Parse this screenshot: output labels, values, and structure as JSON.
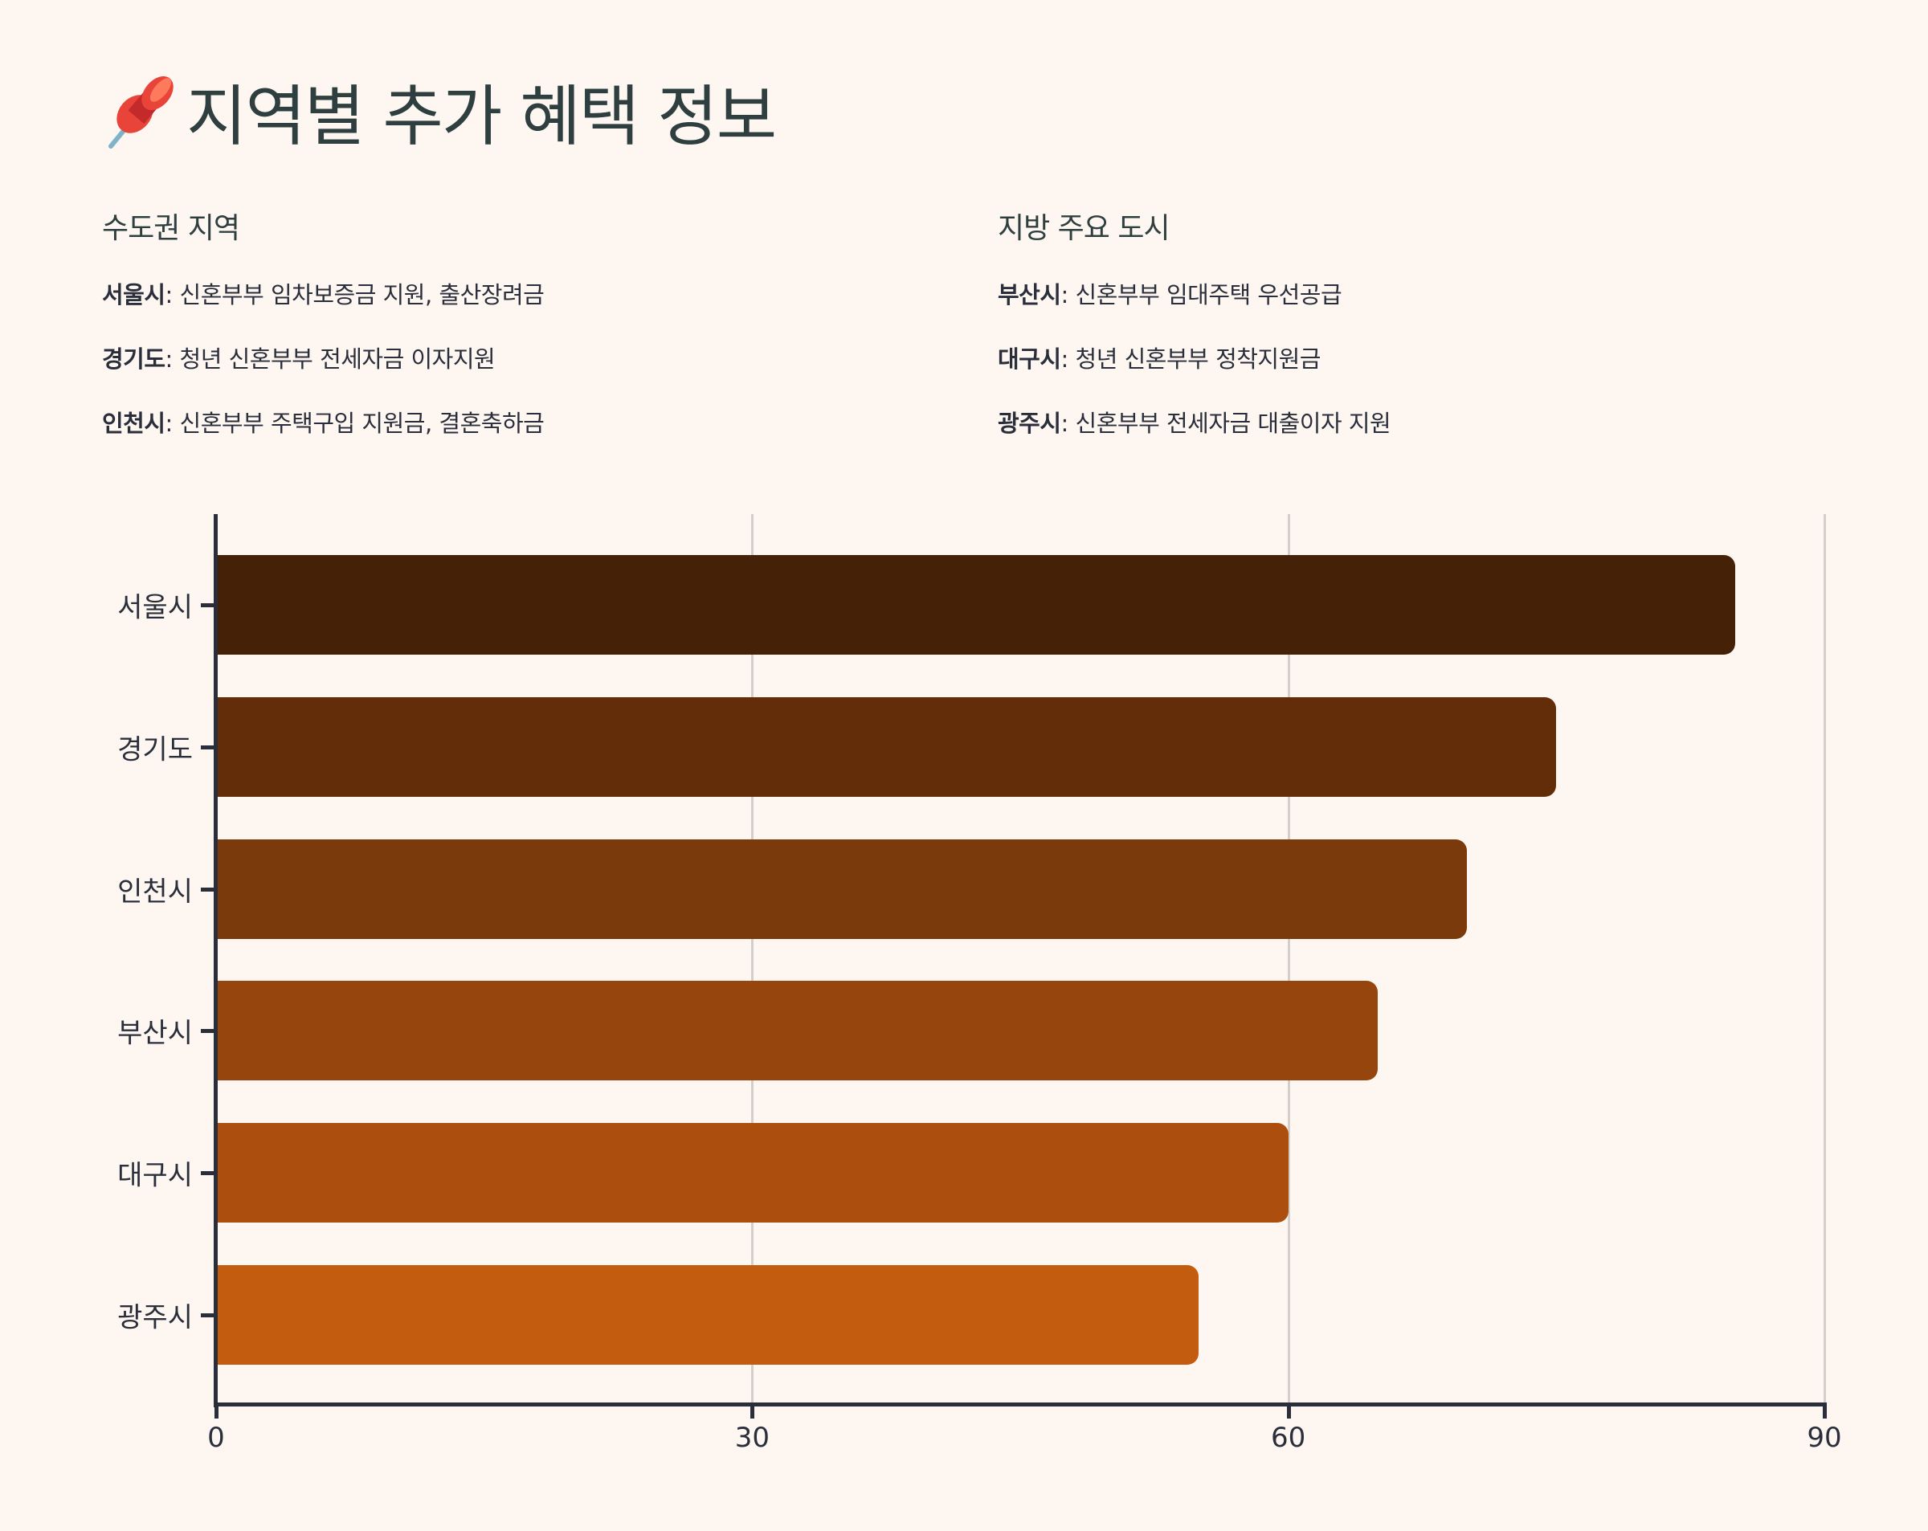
{
  "header": {
    "icon": "pushpin-icon",
    "title": "지역별 추가 혜택 정보"
  },
  "sections": [
    {
      "heading": "수도권 지역",
      "items": [
        {
          "region": "서울시",
          "sep": ": ",
          "benefit": "신혼부부 임차보증금 지원, 출산장려금"
        },
        {
          "region": "경기도",
          "sep": ": ",
          "benefit": "청년 신혼부부 전세자금 이자지원"
        },
        {
          "region": "인천시",
          "sep": ": ",
          "benefit": "신혼부부 주택구입 지원금, 결혼축하금"
        }
      ]
    },
    {
      "heading": "지방 주요 도시",
      "items": [
        {
          "region": "부산시",
          "sep": ": ",
          "benefit": "신혼부부 임대주택 우선공급"
        },
        {
          "region": "대구시",
          "sep": ": ",
          "benefit": "청년 신혼부부 정착지원금"
        },
        {
          "region": "광주시",
          "sep": ": ",
          "benefit": "신혼부부 전세자금 대출이자 지원"
        }
      ]
    }
  ],
  "chart_data": {
    "type": "bar",
    "orientation": "horizontal",
    "title": "",
    "xlabel": "",
    "ylabel": "",
    "categories": [
      "서울시",
      "경기도",
      "인천시",
      "부산시",
      "대구시",
      "광주시"
    ],
    "values": [
      85,
      75,
      70,
      65,
      60,
      55
    ],
    "colors": [
      "#452107",
      "#632D09",
      "#7A3A0B",
      "#96450D",
      "#AC4F0E",
      "#C45C10"
    ],
    "xlim": [
      0,
      90
    ],
    "xticks": [
      "0",
      "30",
      "60",
      "90"
    ],
    "grid": true,
    "legend": null
  }
}
